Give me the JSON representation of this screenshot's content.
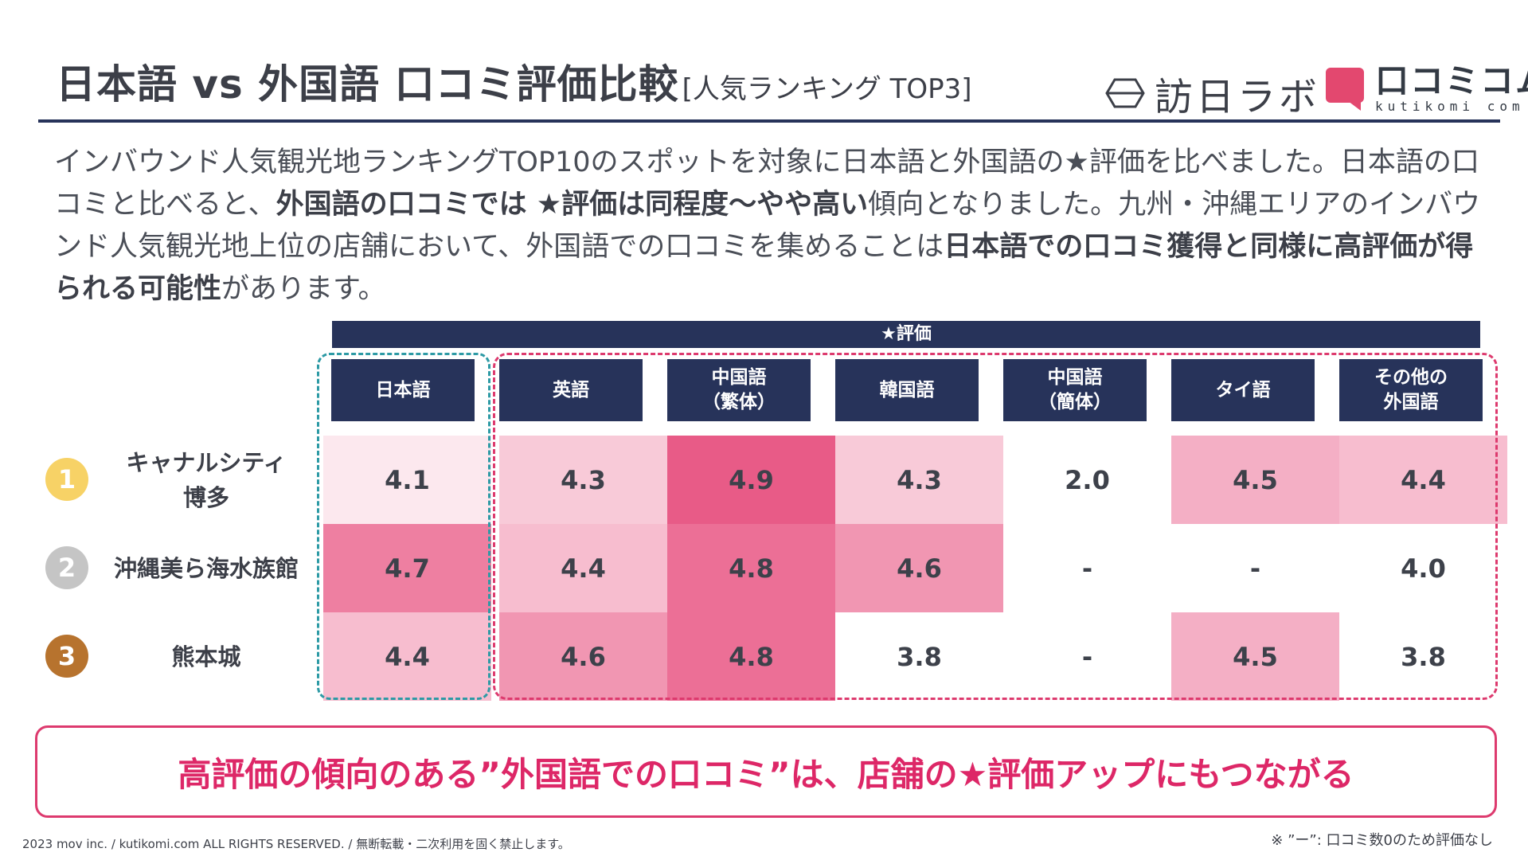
{
  "header": {
    "title": "日本語 vs 外国語 口コミ評価比較",
    "subtitle": "[人気ランキング TOP3]",
    "logo_houjin": "訪日ラボ",
    "logo_kutikomi": "口コミコム",
    "logo_kutikomi_roman": "kutikomi com"
  },
  "description": [
    {
      "t": "インバウンド人気観光地ランキングTOP10のスポットを対象に日本語と外国語の★評価を比べました。日本語の口コミと比べると、",
      "b": false
    },
    {
      "t": "外国語の口コミでは ★評価は同程度〜やや高い",
      "b": true
    },
    {
      "t": "傾向となりました。九州・沖縄エリアのインバウンド人気観光地上位の店舗において、外国語での口コミを集めることは",
      "b": false
    },
    {
      "t": "日本語での口コミ獲得と同様に高評価が得られる可能性",
      "b": true
    },
    {
      "t": "があります。",
      "b": false
    }
  ],
  "chart_data": {
    "type": "table",
    "header": "★評価",
    "columns": [
      "日本語",
      "英語",
      "中国語\n（繁体）",
      "韓国語",
      "中国語\n（簡体）",
      "タイ語",
      "その他の\n外国語"
    ],
    "rows": [
      {
        "rank": "1",
        "spot": "キャナルシティ\n博多",
        "values": [
          "4.1",
          "4.3",
          "4.9",
          "4.3",
          "2.0",
          "4.5",
          "4.4"
        ]
      },
      {
        "rank": "2",
        "spot": "沖縄美ら海水族館",
        "values": [
          "4.7",
          "4.4",
          "4.8",
          "4.6",
          "-",
          "-",
          "4.0"
        ]
      },
      {
        "rank": "3",
        "spot": "熊本城",
        "values": [
          "4.4",
          "4.6",
          "4.8",
          "3.8",
          "-",
          "4.5",
          "3.8"
        ]
      }
    ],
    "groups": [
      "日本語",
      "外国語"
    ]
  },
  "colors": {
    "navy": "#27335a",
    "accent": "#dd2767",
    "teal": "#2d9aa5",
    "rank_gold": "#f7d266",
    "rank_silver": "#c5c5c5",
    "rank_bronze": "#b7732e",
    "heat": {
      "4.1": "#fce8ee",
      "4.3": "#f8cad8",
      "4.4": "#f7bdcf",
      "4.5": "#f4afc5",
      "4.6": "#f196b2",
      "4.7": "#ee7fa1",
      "4.8": "#ec6f96",
      "4.9": "#e85b87"
    }
  },
  "callout": "高評価の傾向のある”外国語での口コミ”は、店舗の★評価アップにもつながる",
  "footer": "2023 mov inc. / kutikomi.com ALL RIGHTS RESERVED. / 無断転載・二次利用を固く禁止します。",
  "note": "※ ”ー”: 口コミ数0のため評価なし"
}
